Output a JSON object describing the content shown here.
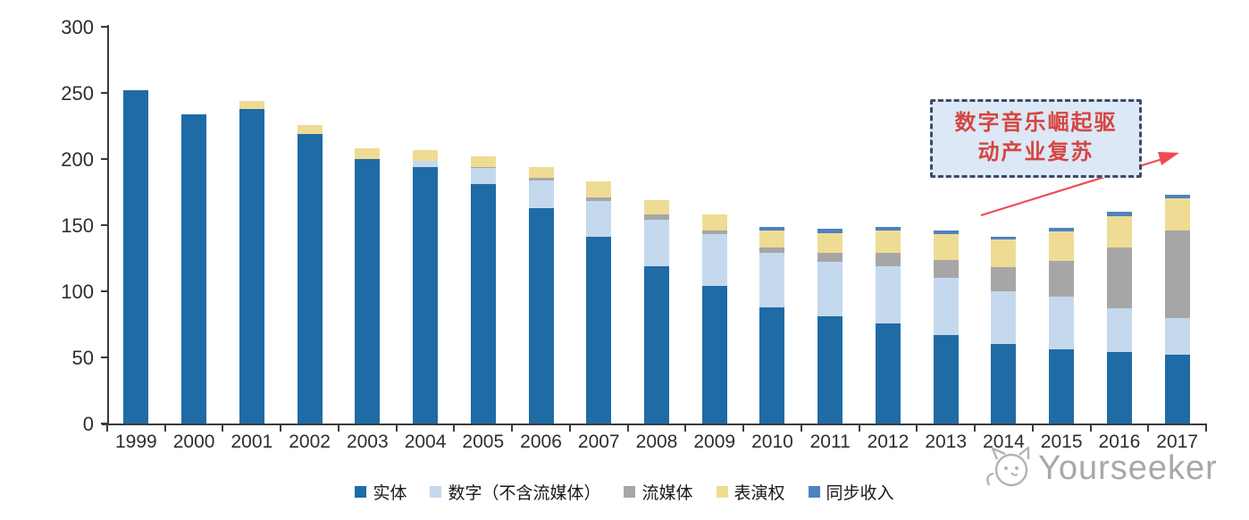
{
  "chart_data": {
    "type": "bar",
    "stacked": true,
    "title": "",
    "xlabel": "",
    "ylabel": "",
    "categories": [
      "1999",
      "2000",
      "2001",
      "2002",
      "2003",
      "2004",
      "2005",
      "2006",
      "2007",
      "2008",
      "2009",
      "2010",
      "2011",
      "2012",
      "2013",
      "2014",
      "2015",
      "2016",
      "2017"
    ],
    "series": [
      {
        "name": "实体",
        "semantic": "physical",
        "color": "#1f6ba6",
        "values": [
          252,
          234,
          238,
          219,
          200,
          194,
          181,
          163,
          141,
          119,
          104,
          88,
          81,
          76,
          67,
          60,
          56,
          54,
          52
        ]
      },
      {
        "name": "数字（不含流媒体）",
        "semantic": "digital-excl-streaming",
        "color": "#c5d9ee",
        "values": [
          0,
          0,
          0,
          0,
          0,
          5,
          12,
          21,
          27,
          35,
          39,
          41,
          41,
          43,
          43,
          40,
          40,
          33,
          28
        ]
      },
      {
        "name": "流媒体",
        "semantic": "streaming",
        "color": "#a6a6a6",
        "values": [
          0,
          0,
          0,
          0,
          0,
          0,
          1,
          2,
          3,
          4,
          3,
          4,
          7,
          10,
          14,
          18,
          27,
          46,
          66
        ]
      },
      {
        "name": "表演权",
        "semantic": "performance-rights",
        "color": "#eedc94",
        "values": [
          0,
          0,
          6,
          7,
          8,
          8,
          8,
          8,
          12,
          11,
          12,
          13,
          15,
          17,
          19,
          21,
          22,
          24,
          24
        ]
      },
      {
        "name": "同步收入",
        "semantic": "sync-revenue",
        "color": "#4e82be",
        "values": [
          0,
          0,
          0,
          0,
          0,
          0,
          0,
          0,
          0,
          0,
          0,
          3,
          3,
          3,
          3,
          2,
          3,
          3,
          3
        ]
      }
    ],
    "ylim": [
      0,
      300
    ],
    "yticks": [
      0,
      50,
      100,
      150,
      200,
      250,
      300
    ],
    "grid": false,
    "legend_position": "bottom"
  },
  "annotation": {
    "lines": [
      "数字音乐崛起驱",
      "动产业复苏"
    ],
    "text_color": "#d64541",
    "box_bg": "#dce8f5",
    "border_color": "#3d4b66",
    "arrow_color": "#ef4b52"
  },
  "watermark": {
    "text": "Yourseeker"
  }
}
